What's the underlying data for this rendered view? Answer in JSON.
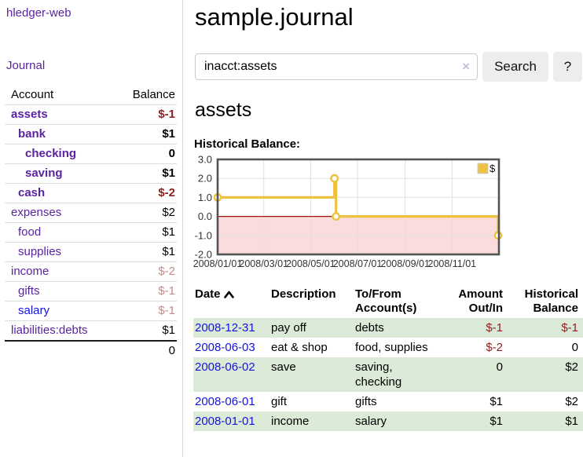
{
  "colors": {
    "purple": "#5a23a0",
    "blue": "#1414dd",
    "neg_strong": "#8c1f1f",
    "neg_soft": "#c58989",
    "stripe_green": "#dcebd8",
    "chart_line": "#edc240",
    "chart_negative_region": "#fbdcdc",
    "chart_zero_line": "#a31515",
    "chart_grid": "#e0e0e0",
    "chart_border": "#545454"
  },
  "app": {
    "brand": "hledger-web",
    "nav_journal": "Journal"
  },
  "sidebar": {
    "columns": {
      "account": "Account",
      "balance": "Balance"
    },
    "rows": [
      {
        "account": "assets",
        "balance": "$-1",
        "depth": 1,
        "bold": true,
        "balance_color": "neg-strong"
      },
      {
        "account": "bank",
        "balance": "$1",
        "depth": 2,
        "bold": true,
        "balance_color": "normal"
      },
      {
        "account": "checking",
        "balance": "0",
        "depth": 3,
        "bold": true,
        "balance_color": "normal"
      },
      {
        "account": "saving",
        "balance": "$1",
        "depth": 3,
        "bold": true,
        "balance_color": "normal"
      },
      {
        "account": "cash",
        "balance": "$-2",
        "depth": 2,
        "bold": true,
        "balance_color": "neg-strong"
      },
      {
        "account": "expenses",
        "balance": "$2",
        "depth": 1,
        "bold": false,
        "balance_color": "normal"
      },
      {
        "account": "food",
        "balance": "$1",
        "depth": 2,
        "bold": false,
        "balance_color": "normal"
      },
      {
        "account": "supplies",
        "balance": "$1",
        "depth": 2,
        "bold": false,
        "balance_color": "normal"
      },
      {
        "account": "income",
        "balance": "$-2",
        "depth": 1,
        "bold": false,
        "balance_color": "neg-soft"
      },
      {
        "account": "gifts",
        "balance": "$-1",
        "depth": 2,
        "bold": false,
        "balance_color": "neg-soft"
      },
      {
        "account": "salary",
        "balance": "$-1",
        "depth": 2,
        "bold": false,
        "balance_color": "neg-soft",
        "link": "blue"
      },
      {
        "account": "liabilities:debts",
        "balance": "$1",
        "depth": 1,
        "bold": false,
        "balance_color": "normal"
      }
    ],
    "total": "0"
  },
  "header": {
    "title": "sample.journal"
  },
  "search": {
    "value": "inacct:assets",
    "clear_icon": "×",
    "button": "Search",
    "help": "?"
  },
  "account_page": {
    "heading": "assets",
    "chart_label": "Historical Balance:"
  },
  "chart_data": {
    "type": "line",
    "title": "Historical Balance:",
    "step": true,
    "series": [
      {
        "name": "$",
        "points": [
          [
            "2008-01-01",
            1
          ],
          [
            "2008-06-01",
            2
          ],
          [
            "2008-06-03",
            0
          ],
          [
            "2008-12-31",
            -1
          ]
        ]
      }
    ],
    "x_ticks": [
      "2008/01/01",
      "2008/03/01",
      "2008/05/01",
      "2008/07/01",
      "2008/09/01",
      "2008/11/01"
    ],
    "y_ticks": [
      "3.0",
      "2.0",
      "1.0",
      "0.0",
      "-1.0",
      "-2.0"
    ],
    "xlim": [
      "2008-01-01",
      "2009-01-01"
    ],
    "ylim": [
      -2,
      3
    ],
    "grid": true,
    "legend": {
      "label": "$",
      "position": "top-right"
    }
  },
  "register": {
    "headers": {
      "date": "Date",
      "description": "Description",
      "accounts": "To/From Account(s)",
      "amount": "Amount Out/In",
      "balance": "Historical Balance"
    },
    "sort_icon": "chevron-up",
    "rows": [
      {
        "date": "2008-12-31",
        "description": "pay off",
        "accounts": "debts",
        "amount": "$-1",
        "balance": "$-1",
        "amount_neg": true,
        "balance_neg": true
      },
      {
        "date": "2008-06-03",
        "description": "eat & shop",
        "accounts": "food, supplies",
        "amount": "$-2",
        "balance": "0",
        "amount_neg": true,
        "balance_neg": false
      },
      {
        "date": "2008-06-02",
        "description": "save",
        "accounts": "saving, checking",
        "amount": "0",
        "balance": "$2",
        "amount_neg": false,
        "balance_neg": false
      },
      {
        "date": "2008-06-01",
        "description": "gift",
        "accounts": "gifts",
        "amount": "$1",
        "balance": "$2",
        "amount_neg": false,
        "balance_neg": false
      },
      {
        "date": "2008-01-01",
        "description": "income",
        "accounts": "salary",
        "amount": "$1",
        "balance": "$1",
        "amount_neg": false,
        "balance_neg": false
      }
    ]
  }
}
